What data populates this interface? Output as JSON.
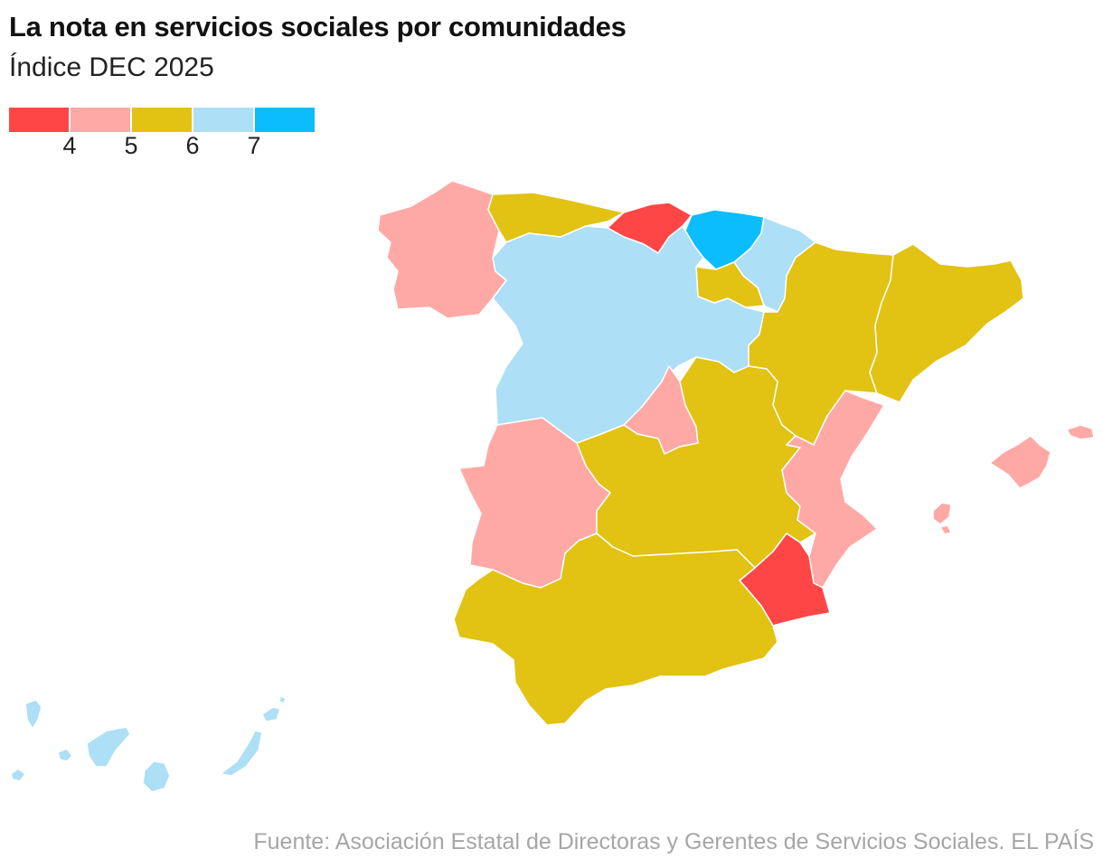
{
  "title": "La nota en servicios sociales por comunidades",
  "subtitle": "Índice DEC 2025",
  "legend": {
    "colors": [
      "#ff4646",
      "#ffa9a6",
      "#e2c213",
      "#addff6",
      "#0bbdfd"
    ],
    "ticks": [
      "4",
      "5",
      "6",
      "7"
    ]
  },
  "regions": [
    {
      "name": "Galicia",
      "class": "5"
    },
    {
      "name": "Asturias",
      "class": "6"
    },
    {
      "name": "Cantabria",
      "class": "4"
    },
    {
      "name": "País Vasco",
      "class": "7+"
    },
    {
      "name": "Navarra",
      "class": "6-7"
    },
    {
      "name": "La Rioja",
      "class": "6"
    },
    {
      "name": "Castilla y León",
      "class": "6-7"
    },
    {
      "name": "Aragón",
      "class": "6"
    },
    {
      "name": "Cataluña",
      "class": "6"
    },
    {
      "name": "Comunidad de Madrid",
      "class": "5"
    },
    {
      "name": "Extremadura",
      "class": "5"
    },
    {
      "name": "Castilla-La Mancha",
      "class": "6"
    },
    {
      "name": "Comunitat Valenciana",
      "class": "5"
    },
    {
      "name": "Región de Murcia",
      "class": "4"
    },
    {
      "name": "Andalucía",
      "class": "6"
    },
    {
      "name": "Illes Balears",
      "class": "5"
    },
    {
      "name": "Canarias",
      "class": "6-7"
    }
  ],
  "source": "Fuente: Asociación Estatal de Directoras y Gerentes de Servicios Sociales. EL PAÍS"
}
